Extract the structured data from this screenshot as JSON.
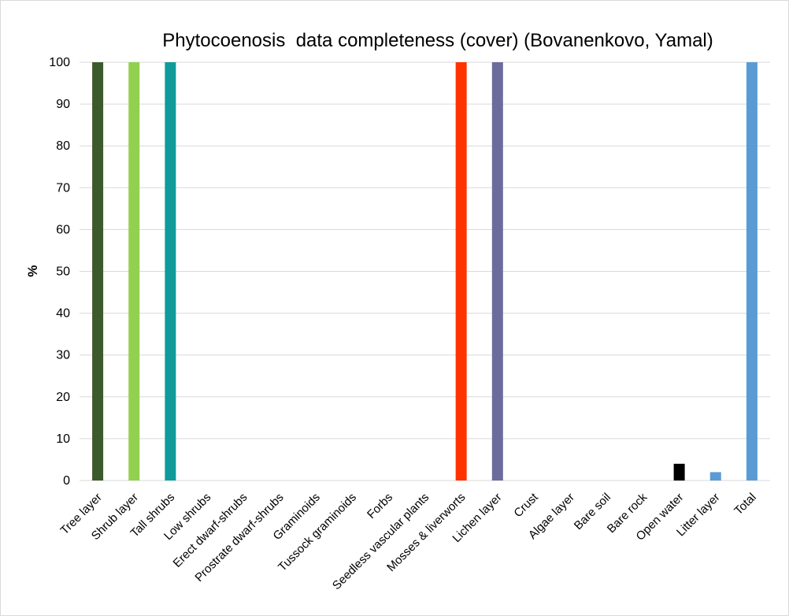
{
  "chart_data": {
    "type": "bar",
    "title": "Phytocoenosis  data completeness (cover) (Bovanenkovo, Yamal)",
    "xlabel": "",
    "ylabel": "%",
    "ylim": [
      0,
      100
    ],
    "yticks": [
      0,
      10,
      20,
      30,
      40,
      50,
      60,
      70,
      80,
      90,
      100
    ],
    "grid": true,
    "legend": "none",
    "categories": [
      "Tree layer",
      "Shrub layer",
      "Tall shrubs",
      "Low shrubs",
      "Erect dwarf-shrubs",
      "Prostrate dwarf-shrubs",
      "Graminoids",
      "Tussock graminoids",
      "Forbs",
      "Seedless vascular plants",
      "Mosses & liverworts",
      "Lichen layer",
      "Crust",
      "Algae layer",
      "Bare soil",
      "Bare rock",
      "Open water",
      "Litter layer",
      "Total"
    ],
    "values": [
      100,
      100,
      100,
      0,
      0,
      0,
      0,
      0,
      0,
      0,
      100,
      100,
      0,
      0,
      0,
      0,
      4,
      2,
      100
    ],
    "colors": [
      "#3c5a2b",
      "#92d050",
      "#0f9b9b",
      "#808080",
      "#808080",
      "#808080",
      "#808080",
      "#808080",
      "#808080",
      "#808080",
      "#ff3300",
      "#6b6b9e",
      "#808080",
      "#808080",
      "#808080",
      "#808080",
      "#000000",
      "#5b9bd5",
      "#5b9bd5"
    ]
  }
}
